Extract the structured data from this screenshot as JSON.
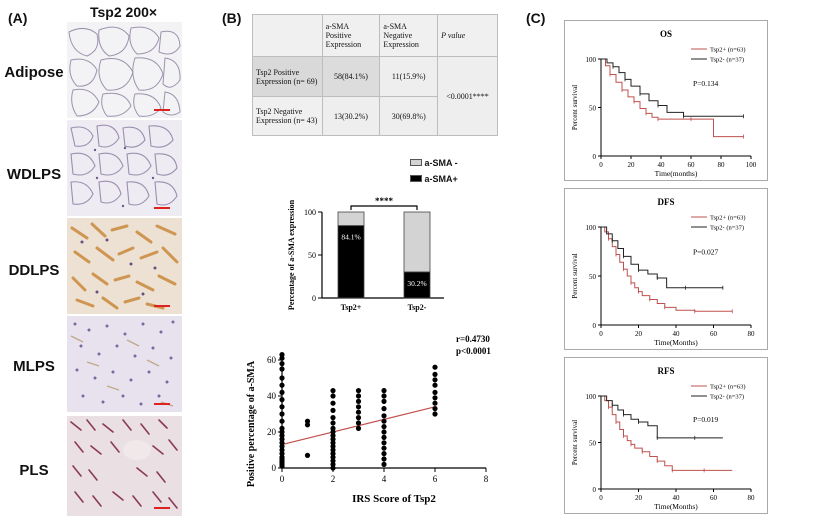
{
  "panel_a": {
    "label": "(A)",
    "header": "Tsp2 200×",
    "tissues": [
      "Adipose",
      "WDLPS",
      "DDLPS",
      "MLPS",
      "PLS"
    ]
  },
  "panel_b": {
    "label": "(B)",
    "table": {
      "col_headers": [
        "a-SMA Positive Expression",
        "a-SMA Negative Expression",
        "P value"
      ],
      "rows": [
        {
          "label": "Tsp2 Positive Expression (n= 69)",
          "pos": "58(84.1%)",
          "neg": "11(15.9%)"
        },
        {
          "label": "Tsp2 Negative Expression (n= 43)",
          "pos": "13(30.2%)",
          "neg": "30(69.8%)"
        }
      ],
      "p_value": "<0.0001****"
    },
    "stacked_bar": {
      "ylabel": "Percentage of a-SMA expression",
      "significance": "****",
      "legend": [
        "a-SMA -",
        "a-SMA+"
      ]
    },
    "scatter": {
      "ylabel": "Positive percentage of a-SMA",
      "xlabel": "IRS Score of Tsp2",
      "stats": [
        "r=0.4730",
        "p<0.0001"
      ]
    }
  },
  "panel_c": {
    "label": "(C)",
    "legend_labels": [
      "Tsp2+ (n=63)",
      "Tsp2- (n=37)"
    ],
    "ylabel": "Percent survival"
  },
  "colors": {
    "tsp2_pos": "#c0504d",
    "tsp2_neg": "#222222",
    "asma_pos": "#000000",
    "asma_neg": "#d3d3d3",
    "regression": "#c0504d"
  },
  "chart_data": [
    {
      "type": "bar",
      "stacked": true,
      "categories": [
        "Tsp2+",
        "Tsp2-"
      ],
      "series": [
        {
          "name": "a-SMA+",
          "values": [
            84.1,
            30.2
          ],
          "labels": [
            "84.1%",
            "30.2%"
          ]
        },
        {
          "name": "a-SMA -",
          "values": [
            15.9,
            69.8
          ]
        }
      ],
      "ylim": [
        0,
        100
      ],
      "yticks": [
        0,
        50,
        100
      ],
      "ylabel": "Percentage of a-SMA expression",
      "legend_position": "top-right"
    },
    {
      "type": "scatter",
      "xlabel": "IRS Score of Tsp2",
      "ylabel": "Positive percentage of a-SMA",
      "xlim": [
        0,
        8
      ],
      "ylim": [
        0,
        60
      ],
      "xticks": [
        0,
        2,
        4,
        6,
        8
      ],
      "yticks": [
        0,
        20,
        40,
        60
      ],
      "regression": {
        "x": [
          0,
          6
        ],
        "y": [
          13,
          34
        ]
      },
      "points": [
        [
          0,
          2
        ],
        [
          0,
          4
        ],
        [
          0,
          6
        ],
        [
          0,
          8
        ],
        [
          0,
          10
        ],
        [
          0,
          12
        ],
        [
          0,
          14
        ],
        [
          0,
          16
        ],
        [
          0,
          18
        ],
        [
          0,
          20
        ],
        [
          0,
          22
        ],
        [
          0,
          26
        ],
        [
          0,
          30
        ],
        [
          0,
          34
        ],
        [
          0,
          38
        ],
        [
          0,
          42
        ],
        [
          0,
          46
        ],
        [
          0,
          50
        ],
        [
          0,
          55
        ],
        [
          0,
          58
        ],
        [
          0,
          61
        ],
        [
          0,
          63
        ],
        [
          0,
          1
        ],
        [
          0,
          3
        ],
        [
          0,
          5
        ],
        [
          1,
          7
        ],
        [
          1,
          24
        ],
        [
          1,
          26
        ],
        [
          2,
          0
        ],
        [
          2,
          2
        ],
        [
          2,
          4
        ],
        [
          2,
          6
        ],
        [
          2,
          8
        ],
        [
          2,
          10
        ],
        [
          2,
          12
        ],
        [
          2,
          14
        ],
        [
          2,
          16
        ],
        [
          2,
          18
        ],
        [
          2,
          20
        ],
        [
          2,
          22
        ],
        [
          2,
          25
        ],
        [
          2,
          28
        ],
        [
          2,
          32
        ],
        [
          2,
          36
        ],
        [
          2,
          40
        ],
        [
          2,
          43
        ],
        [
          3,
          22
        ],
        [
          3,
          25
        ],
        [
          3,
          28
        ],
        [
          3,
          31
        ],
        [
          3,
          34
        ],
        [
          3,
          37
        ],
        [
          3,
          40
        ],
        [
          3,
          43
        ],
        [
          4,
          2
        ],
        [
          4,
          5
        ],
        [
          4,
          8
        ],
        [
          4,
          11
        ],
        [
          4,
          14
        ],
        [
          4,
          17
        ],
        [
          4,
          20
        ],
        [
          4,
          23
        ],
        [
          4,
          26
        ],
        [
          4,
          29
        ],
        [
          4,
          33
        ],
        [
          4,
          37
        ],
        [
          4,
          40
        ],
        [
          4,
          43
        ],
        [
          6,
          30
        ],
        [
          6,
          33
        ],
        [
          6,
          36
        ],
        [
          6,
          39
        ],
        [
          6,
          42
        ],
        [
          6,
          46
        ],
        [
          6,
          49
        ],
        [
          6,
          52
        ],
        [
          6,
          56
        ]
      ]
    },
    {
      "type": "line",
      "title": "OS",
      "xlabel": "Time(months)",
      "ylabel": "Percent survival",
      "xlim": [
        0,
        100
      ],
      "ylim": [
        0,
        100
      ],
      "xticks": [
        0,
        20,
        40,
        60,
        80,
        100
      ],
      "yticks": [
        0,
        50,
        100
      ],
      "p_value": "P=0.134",
      "series": [
        {
          "name": "Tsp2+ (n=63)",
          "x": [
            0,
            3,
            6,
            10,
            14,
            18,
            22,
            26,
            30,
            34,
            38,
            45,
            60,
            75,
            95
          ],
          "y": [
            100,
            93,
            84,
            76,
            68,
            61,
            56,
            49,
            44,
            40,
            38,
            38,
            38,
            20,
            20
          ]
        },
        {
          "name": "Tsp2- (n=37)",
          "x": [
            0,
            4,
            8,
            12,
            16,
            20,
            26,
            32,
            38,
            44,
            55,
            70,
            95
          ],
          "y": [
            100,
            96,
            92,
            86,
            79,
            72,
            64,
            57,
            52,
            45,
            41,
            41,
            41
          ]
        }
      ]
    },
    {
      "type": "line",
      "title": "DFS",
      "xlabel": "Time(Months)",
      "ylabel": "Percent survival",
      "xlim": [
        0,
        80
      ],
      "ylim": [
        0,
        100
      ],
      "xticks": [
        0,
        20,
        40,
        60,
        80
      ],
      "yticks": [
        0,
        50,
        100
      ],
      "p_value": "P=0.027",
      "series": [
        {
          "name": "Tsp2+ (n=63)",
          "x": [
            0,
            2,
            4,
            6,
            8,
            10,
            12,
            14,
            16,
            18,
            20,
            22,
            26,
            30,
            34,
            40,
            50,
            60,
            70
          ],
          "y": [
            100,
            95,
            88,
            80,
            72,
            64,
            57,
            50,
            43,
            38,
            34,
            30,
            26,
            22,
            18,
            15,
            14,
            14,
            14
          ]
        },
        {
          "name": "Tsp2- (n=37)",
          "x": [
            0,
            3,
            6,
            9,
            12,
            16,
            20,
            25,
            30,
            35,
            45,
            55,
            65
          ],
          "y": [
            100,
            93,
            86,
            78,
            70,
            62,
            56,
            52,
            48,
            38,
            38,
            38,
            38
          ]
        }
      ]
    },
    {
      "type": "line",
      "title": "RFS",
      "xlabel": "Time(Months)",
      "ylabel": "Percent survival",
      "xlim": [
        0,
        80
      ],
      "ylim": [
        0,
        100
      ],
      "xticks": [
        0,
        20,
        40,
        60,
        80
      ],
      "yticks": [
        0,
        50,
        100
      ],
      "p_value": "P=0.019",
      "series": [
        {
          "name": "Tsp2+ (n=63)",
          "x": [
            0,
            2,
            4,
            6,
            8,
            10,
            12,
            14,
            16,
            18,
            22,
            26,
            30,
            34,
            38,
            45,
            55,
            70
          ],
          "y": [
            100,
            95,
            88,
            80,
            72,
            64,
            57,
            52,
            48,
            44,
            40,
            35,
            30,
            25,
            20,
            20,
            20,
            20
          ]
        },
        {
          "name": "Tsp2- (n=37)",
          "x": [
            0,
            3,
            6,
            9,
            12,
            16,
            20,
            25,
            30,
            40,
            50,
            65
          ],
          "y": [
            100,
            95,
            90,
            85,
            80,
            75,
            72,
            68,
            55,
            55,
            55,
            55
          ]
        }
      ]
    }
  ]
}
